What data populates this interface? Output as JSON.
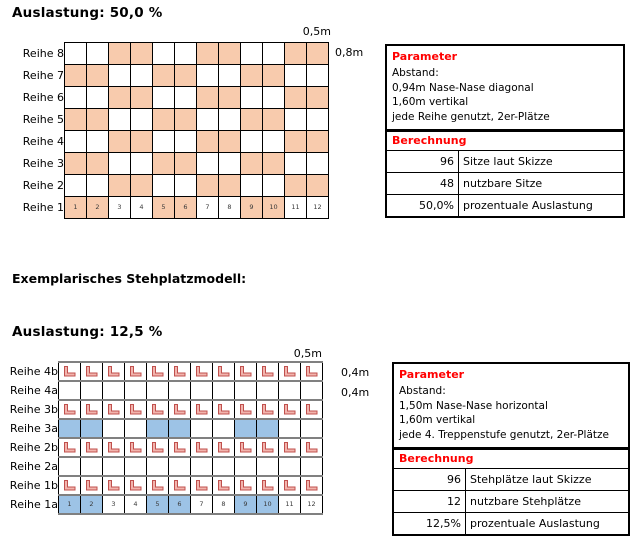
{
  "colors": {
    "seat_fill": "#F8CBAD",
    "stand_fill": "#9DC3E6",
    "header_red": "#FF0000",
    "l_fill": "#F2B4AD",
    "l_stroke": "#C0504D",
    "step_line": "#808080"
  },
  "section_seats": {
    "title": "Auslastung: 50,0 %",
    "top_dim_label": "0,5m",
    "right_dim_label": "0,8m",
    "columns": 12,
    "col_numbers": [
      "1",
      "2",
      "3",
      "4",
      "5",
      "6",
      "7",
      "8",
      "9",
      "10",
      "11",
      "12"
    ],
    "cell_name": "seat-cell",
    "fill_class": "seatfill",
    "rows": [
      {
        "label": "Reihe 8",
        "type": "seats",
        "filled": [
          3,
          4,
          7,
          8,
          11,
          12
        ]
      },
      {
        "label": "Reihe 7",
        "type": "seats",
        "filled": [
          1,
          2,
          5,
          6,
          9,
          10
        ]
      },
      {
        "label": "Reihe 6",
        "type": "seats",
        "filled": [
          3,
          4,
          7,
          8,
          11,
          12
        ]
      },
      {
        "label": "Reihe 5",
        "type": "seats",
        "filled": [
          1,
          2,
          5,
          6,
          9,
          10
        ]
      },
      {
        "label": "Reihe 4",
        "type": "seats",
        "filled": [
          3,
          4,
          7,
          8,
          11,
          12
        ]
      },
      {
        "label": "Reihe 3",
        "type": "seats",
        "filled": [
          1,
          2,
          5,
          6,
          9,
          10
        ]
      },
      {
        "label": "Reihe 2",
        "type": "seats",
        "filled": [
          3,
          4,
          7,
          8,
          11,
          12
        ]
      },
      {
        "label": "Reihe 1",
        "type": "seats",
        "filled": [
          1,
          2,
          5,
          6,
          9,
          10
        ],
        "numbers": true
      }
    ],
    "params": {
      "header": "Parameter",
      "lines": [
        "Abstand:",
        "0,94m Nase-Nase diagonal",
        "1,60m vertikal",
        "jede Reihe genutzt, 2er-Plätze"
      ],
      "calc_header": "Berechnung",
      "calc_rows": [
        {
          "value": "96",
          "label": "Sitze laut Skizze"
        },
        {
          "value": "48",
          "label": "nutzbare Sitze"
        },
        {
          "value": "50,0%",
          "label": "prozentuale Auslastung"
        }
      ]
    }
  },
  "middle_heading": "Exemplarisches Stehplatzmodell:",
  "section_standing": {
    "title": "Auslastung: 12,5 %",
    "top_dim_label": "0,5m",
    "right_dim_labels": [
      "0,4m",
      "0,4m"
    ],
    "columns": 12,
    "col_numbers": [
      "1",
      "2",
      "3",
      "4",
      "5",
      "6",
      "7",
      "8",
      "9",
      "10",
      "11",
      "12"
    ],
    "cell_name": "step-cell",
    "fill_class": "standfill",
    "rows": [
      {
        "label": "Reihe 4b",
        "type": "L"
      },
      {
        "label": "Reihe 4a",
        "type": "empty"
      },
      {
        "label": "Reihe 3b",
        "type": "L"
      },
      {
        "label": "Reihe 3a",
        "type": "filled",
        "filled": [
          1,
          2,
          5,
          6,
          9,
          10
        ]
      },
      {
        "label": "Reihe 2b",
        "type": "L"
      },
      {
        "label": "Reihe 2a",
        "type": "empty"
      },
      {
        "label": "Reihe 1b",
        "type": "L"
      },
      {
        "label": "Reihe 1a",
        "type": "filled",
        "filled": [
          1,
          2,
          5,
          6,
          9,
          10
        ],
        "numbers": true
      }
    ],
    "params": {
      "header": "Parameter",
      "lines": [
        "Abstand:",
        "1,50m Nase-Nase horizontal",
        "1,60m vertikal",
        "jede 4. Treppenstufe genutzt, 2er-Plätze"
      ],
      "calc_header": "Berechnung",
      "calc_rows": [
        {
          "value": "96",
          "label": "Stehplätze laut Skizze"
        },
        {
          "value": "12",
          "label": "nutzbare Stehplätze"
        },
        {
          "value": "12,5%",
          "label": "prozentuale Auslastung"
        }
      ]
    }
  }
}
